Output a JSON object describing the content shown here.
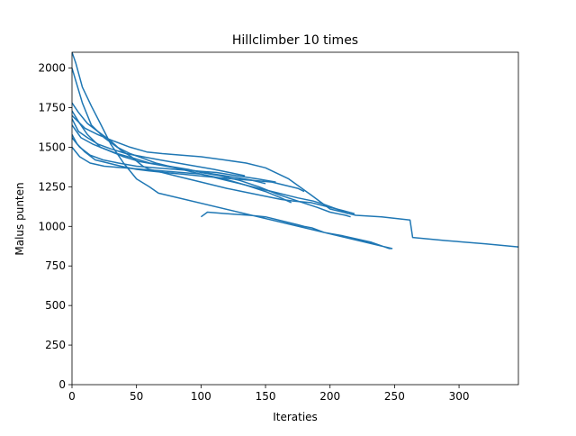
{
  "chart_data": {
    "type": "line",
    "title": "Hillclimber 10 times",
    "xlabel": "Iteraties",
    "ylabel": "Malus punten",
    "xlim": [
      0,
      346
    ],
    "ylim": [
      0,
      2100
    ],
    "x_ticks": [
      0,
      50,
      100,
      150,
      200,
      250,
      300
    ],
    "y_ticks": [
      0,
      250,
      500,
      750,
      1000,
      1250,
      1500,
      1750,
      2000
    ],
    "grid": false,
    "legend": "none",
    "line_color": "#1f77b4",
    "series": [
      {
        "x": [
          0,
          3,
          8,
          15,
          22,
          30,
          40,
          50,
          60,
          67,
          248,
          246,
          232,
          210,
          196,
          186,
          180,
          175,
          165,
          150,
          138,
          120,
          105,
          100
        ],
        "y": [
          2100,
          2030,
          1880,
          1760,
          1650,
          1520,
          1400,
          1300,
          1250,
          1210,
          860,
          860,
          900,
          940,
          960,
          990,
          1000,
          1010,
          1030,
          1060,
          1070,
          1080,
          1090,
          1060
        ]
      },
      {
        "x": [
          0,
          5,
          12,
          20,
          30,
          38,
          46,
          55,
          60,
          70,
          80,
          90,
          100,
          110,
          120,
          132,
          150,
          162,
          172,
          185,
          195,
          210,
          219
        ],
        "y": [
          1780,
          1720,
          1650,
          1600,
          1540,
          1480,
          1440,
          1380,
          1360,
          1340,
          1320,
          1300,
          1280,
          1260,
          1240,
          1220,
          1190,
          1170,
          1160,
          1150,
          1130,
          1100,
          1080
        ]
      },
      {
        "x": [
          0,
          6,
          12,
          22,
          35,
          48,
          60,
          75,
          90,
          100,
          115,
          130,
          145,
          160,
          175,
          190,
          200,
          212,
          216
        ],
        "y": [
          1730,
          1650,
          1580,
          1500,
          1460,
          1430,
          1400,
          1380,
          1360,
          1340,
          1320,
          1290,
          1250,
          1200,
          1160,
          1120,
          1090,
          1070,
          1060
        ]
      },
      {
        "x": [
          0,
          4,
          10,
          18,
          28,
          38,
          50,
          60,
          72,
          85,
          98,
          110,
          125,
          140,
          155,
          165,
          175,
          180
        ],
        "y": [
          1580,
          1520,
          1470,
          1420,
          1400,
          1380,
          1360,
          1350,
          1340,
          1330,
          1320,
          1310,
          1300,
          1290,
          1280,
          1260,
          1240,
          1220
        ]
      },
      {
        "x": [
          0,
          6,
          14,
          25,
          40,
          55,
          70,
          85,
          100,
          118,
          135,
          150,
          162,
          170
        ],
        "y": [
          1500,
          1440,
          1400,
          1380,
          1370,
          1360,
          1350,
          1340,
          1330,
          1300,
          1260,
          1220,
          1180,
          1150
        ]
      },
      {
        "x": [
          0,
          8,
          15,
          25,
          35,
          45,
          55,
          65,
          75,
          85,
          100,
          115,
          130,
          145,
          160,
          175,
          187,
          195,
          205,
          214
        ],
        "y": [
          2000,
          1780,
          1640,
          1560,
          1500,
          1460,
          1430,
          1400,
          1380,
          1360,
          1330,
          1300,
          1270,
          1240,
          1210,
          1180,
          1160,
          1140,
          1110,
          1080
        ]
      },
      {
        "x": [
          0,
          10,
          20,
          32,
          45,
          58,
          70,
          85,
          100,
          118,
          135,
          150,
          168,
          185,
          200,
          220,
          240,
          262,
          264,
          290,
          320,
          346
        ],
        "y": [
          1700,
          1620,
          1580,
          1540,
          1500,
          1470,
          1460,
          1450,
          1440,
          1420,
          1400,
          1370,
          1300,
          1200,
          1110,
          1070,
          1060,
          1040,
          930,
          910,
          890,
          870
        ]
      },
      {
        "x": [
          0,
          6,
          14,
          24,
          36,
          50,
          64,
          80,
          96,
          112,
          128,
          144,
          158
        ],
        "y": [
          1560,
          1500,
          1450,
          1420,
          1400,
          1380,
          1370,
          1360,
          1350,
          1340,
          1320,
          1300,
          1280
        ]
      },
      {
        "x": [
          0,
          7,
          16,
          28,
          40,
          52,
          66,
          80,
          96,
          110,
          126,
          140,
          150
        ],
        "y": [
          1640,
          1560,
          1520,
          1480,
          1440,
          1410,
          1390,
          1370,
          1350,
          1330,
          1310,
          1290,
          1270
        ]
      },
      {
        "x": [
          0,
          5,
          12,
          20,
          30,
          42,
          55,
          68,
          82,
          96,
          110,
          122,
          134
        ],
        "y": [
          1680,
          1600,
          1560,
          1520,
          1490,
          1460,
          1440,
          1420,
          1400,
          1380,
          1360,
          1340,
          1320
        ]
      }
    ]
  }
}
